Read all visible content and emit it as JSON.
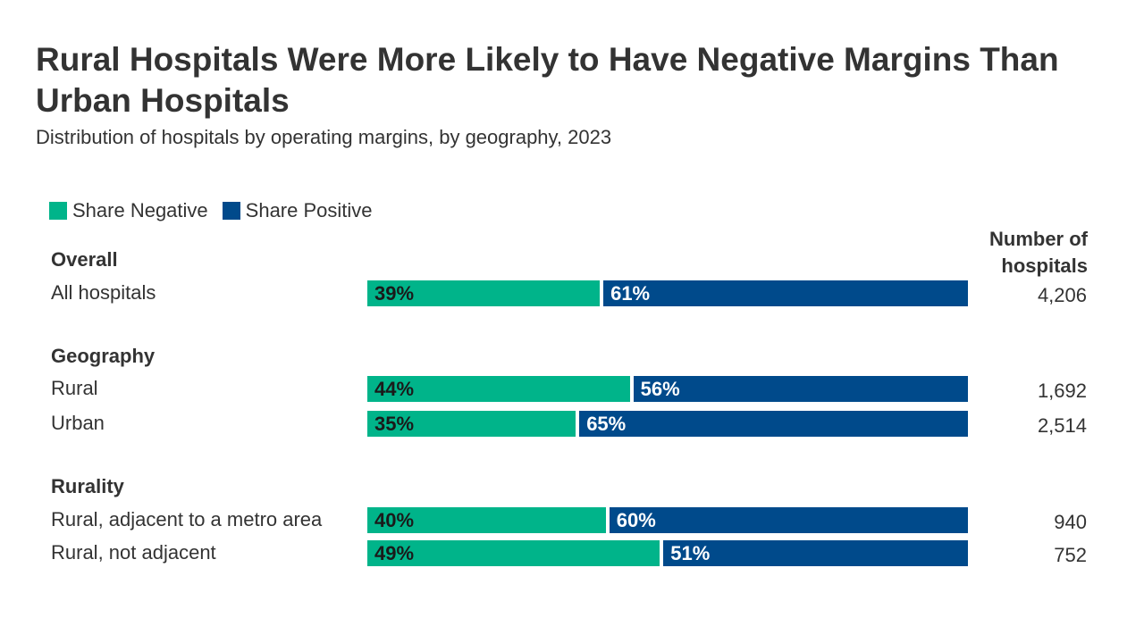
{
  "title": "Rural Hospitals Were More Likely to Have Negative Margins Than Urban Hospitals",
  "subtitle": "Distribution of hospitals by operating margins, by geography, 2023",
  "colors": {
    "negative": "#00b48a",
    "positive": "#004a8b",
    "negative_label_text": "#1a1a1a",
    "positive_label_text": "#ffffff"
  },
  "chart_data": {
    "type": "bar",
    "orientation": "horizontal",
    "stacked": true,
    "xlim": [
      0,
      100
    ],
    "legend_position": "top-left",
    "legend": [
      "Share Negative",
      "Share Positive"
    ],
    "count_header": "Number of hospitals",
    "groups": [
      {
        "label": "Overall",
        "rows": [
          {
            "label": "All hospitals",
            "negative": 39,
            "positive": 61,
            "negative_label": "39%",
            "positive_label": "61%",
            "count": "4,206"
          }
        ]
      },
      {
        "label": "Geography",
        "rows": [
          {
            "label": "Rural",
            "negative": 44,
            "positive": 56,
            "negative_label": "44%",
            "positive_label": "56%",
            "count": "1,692"
          },
          {
            "label": "Urban",
            "negative": 35,
            "positive": 65,
            "negative_label": "35%",
            "positive_label": "65%",
            "count": "2,514"
          }
        ]
      },
      {
        "label": "Rurality",
        "rows": [
          {
            "label": "Rural, adjacent to a metro area",
            "negative": 40,
            "positive": 60,
            "negative_label": "40%",
            "positive_label": "60%",
            "count": "940"
          },
          {
            "label": "Rural, not adjacent",
            "negative": 49,
            "positive": 51,
            "negative_label": "49%",
            "positive_label": "51%",
            "count": "752"
          }
        ]
      }
    ]
  }
}
